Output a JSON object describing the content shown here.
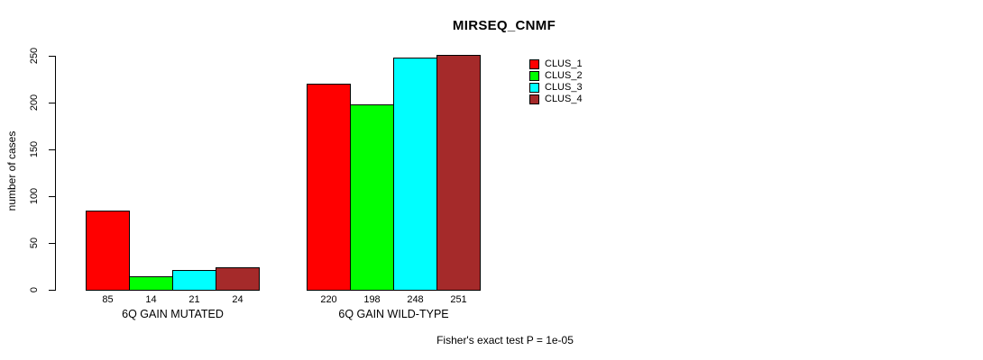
{
  "chart_data": {
    "type": "bar",
    "title": "MIRSEQ_CNMF",
    "ylabel": "number of cases",
    "xlabel": "",
    "ylim": [
      0,
      250
    ],
    "yticks": [
      0,
      50,
      100,
      150,
      200,
      250
    ],
    "grid": false,
    "legend_position": "top-right",
    "legend_entries": [
      "CLUS_1",
      "CLUS_2",
      "CLUS_3",
      "CLUS_4"
    ],
    "categories": [
      "6Q GAIN MUTATED",
      "6Q GAIN WILD-TYPE"
    ],
    "series": [
      {
        "name": "CLUS_1",
        "color": "#FF0000",
        "values": [
          85,
          220
        ]
      },
      {
        "name": "CLUS_2",
        "color": "#00FF00",
        "values": [
          14,
          198
        ]
      },
      {
        "name": "CLUS_3",
        "color": "#00FFFF",
        "values": [
          21,
          248
        ]
      },
      {
        "name": "CLUS_4",
        "color": "#A52A2A",
        "values": [
          24,
          251
        ]
      }
    ],
    "bar_value_labels_shown": true,
    "annotation": "Fisher's exact test P = 1e-05"
  },
  "colors": {
    "background": "#FFFFFF",
    "axis": "#000000",
    "text": "#000000"
  }
}
